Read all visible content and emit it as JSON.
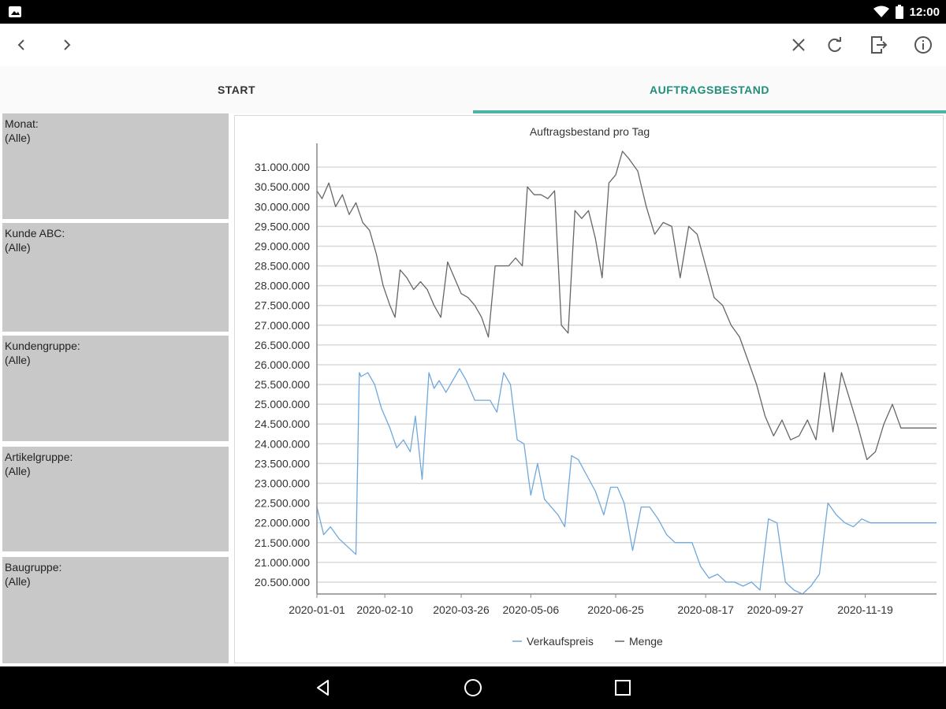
{
  "status_bar": {
    "time": "12:00",
    "icons": [
      "image-notification-icon",
      "wifi-icon",
      "battery-icon"
    ]
  },
  "app_bar": {
    "icons": [
      "back-chevron-icon",
      "forward-chevron-icon",
      "close-icon",
      "refresh-icon",
      "export-icon",
      "info-icon"
    ]
  },
  "tabs": [
    {
      "label": "START",
      "active": false
    },
    {
      "label": "AUFTRAGSBESTAND",
      "active": true
    }
  ],
  "colors": {
    "accent": "#1f8f7a",
    "indicator": "#4db3a2",
    "filter_bg": "#c8c8c8",
    "series_verkaufspreis": "#6fa8dc",
    "series_menge": "#666666"
  },
  "filters": [
    {
      "label": "Monat:",
      "value": "(Alle)"
    },
    {
      "label": "Kunde ABC:",
      "value": "(Alle)"
    },
    {
      "label": "Kundengruppe:",
      "value": "(Alle)"
    },
    {
      "label": "Artikelgruppe:",
      "value": "(Alle)"
    },
    {
      "label": "Baugruppe:",
      "value": "(Alle)"
    }
  ],
  "chart_data": {
    "type": "line",
    "title": "Auftragsbestand pro Tag",
    "xlabel": "",
    "ylabel": "",
    "grid": true,
    "legend_position": "bottom",
    "ylim": [
      20200000,
      31600000
    ],
    "y_ticks": [
      "20.500.000",
      "21.000.000",
      "21.500.000",
      "22.000.000",
      "22.500.000",
      "23.000.000",
      "23.500.000",
      "24.000.000",
      "24.500.000",
      "25.000.000",
      "25.500.000",
      "26.000.000",
      "26.500.000",
      "27.000.000",
      "27.500.000",
      "28.000.000",
      "28.500.000",
      "29.000.000",
      "29.500.000",
      "30.000.000",
      "30.500.000",
      "31.000.000"
    ],
    "x_range": [
      "2020-01-01",
      "2020-12-31"
    ],
    "x_ticks": [
      "2020-01-01",
      "2020-02-10",
      "2020-03-26",
      "2020-05-06",
      "2020-06-25",
      "2020-08-17",
      "2020-09-27",
      "2020-11-19"
    ],
    "series": [
      {
        "name": "Verkaufspreis",
        "color": "#6fa8dc",
        "x": [
          "2020-01-01",
          "2020-01-05",
          "2020-01-09",
          "2020-01-14",
          "2020-01-19",
          "2020-01-24",
          "2020-01-26",
          "2020-01-27",
          "2020-01-31",
          "2020-02-04",
          "2020-02-08",
          "2020-02-13",
          "2020-02-17",
          "2020-02-21",
          "2020-02-25",
          "2020-02-28",
          "2020-03-03",
          "2020-03-07",
          "2020-03-10",
          "2020-03-13",
          "2020-03-17",
          "2020-03-21",
          "2020-03-25",
          "2020-03-29",
          "2020-04-03",
          "2020-04-08",
          "2020-04-12",
          "2020-04-16",
          "2020-04-20",
          "2020-04-24",
          "2020-04-28",
          "2020-05-02",
          "2020-05-06",
          "2020-05-10",
          "2020-05-14",
          "2020-05-18",
          "2020-05-22",
          "2020-05-26",
          "2020-05-30",
          "2020-06-03",
          "2020-06-08",
          "2020-06-13",
          "2020-06-18",
          "2020-06-22",
          "2020-06-26",
          "2020-06-30",
          "2020-07-05",
          "2020-07-10",
          "2020-07-15",
          "2020-07-20",
          "2020-07-25",
          "2020-07-30",
          "2020-08-04",
          "2020-08-09",
          "2020-08-14",
          "2020-08-19",
          "2020-08-24",
          "2020-08-29",
          "2020-09-03",
          "2020-09-08",
          "2020-09-13",
          "2020-09-18",
          "2020-09-23",
          "2020-09-28",
          "2020-10-03",
          "2020-10-08",
          "2020-10-13",
          "2020-10-18",
          "2020-10-23",
          "2020-10-28",
          "2020-11-02",
          "2020-11-07",
          "2020-11-12",
          "2020-11-17",
          "2020-11-22",
          "2020-11-27",
          "2020-12-02",
          "2020-12-07",
          "2020-12-12",
          "2020-12-17",
          "2020-12-22",
          "2020-12-27",
          "2020-12-31"
        ],
        "values": [
          22400000,
          21700000,
          21900000,
          21600000,
          21400000,
          21200000,
          25800000,
          25700000,
          25800000,
          25500000,
          24900000,
          24400000,
          23900000,
          24100000,
          23800000,
          24700000,
          23100000,
          25800000,
          25400000,
          25600000,
          25300000,
          25600000,
          25900000,
          25600000,
          25100000,
          25100000,
          25100000,
          24800000,
          25800000,
          25500000,
          24100000,
          24000000,
          22700000,
          23500000,
          22600000,
          22400000,
          22200000,
          21900000,
          23700000,
          23600000,
          23200000,
          22800000,
          22200000,
          22900000,
          22900000,
          22500000,
          21300000,
          22400000,
          22400000,
          22100000,
          21700000,
          21500000,
          21500000,
          21500000,
          20900000,
          20600000,
          20700000,
          20500000,
          20500000,
          20400000,
          20500000,
          20300000,
          22100000,
          22000000,
          20500000,
          20300000,
          20200000,
          20400000,
          20700000,
          22500000,
          22200000,
          22000000,
          21900000,
          22100000,
          22000000,
          22000000,
          22000000,
          22000000,
          22000000,
          22000000,
          22000000,
          22000000,
          22000000
        ]
      },
      {
        "name": "Menge",
        "color": "#666666",
        "x": [
          "2020-01-01",
          "2020-01-04",
          "2020-01-08",
          "2020-01-12",
          "2020-01-16",
          "2020-01-20",
          "2020-01-24",
          "2020-01-28",
          "2020-02-01",
          "2020-02-05",
          "2020-02-09",
          "2020-02-13",
          "2020-02-16",
          "2020-02-19",
          "2020-02-23",
          "2020-02-27",
          "2020-03-02",
          "2020-03-06",
          "2020-03-10",
          "2020-03-14",
          "2020-03-18",
          "2020-03-22",
          "2020-03-26",
          "2020-03-30",
          "2020-04-03",
          "2020-04-07",
          "2020-04-11",
          "2020-04-15",
          "2020-04-19",
          "2020-04-23",
          "2020-04-27",
          "2020-05-01",
          "2020-05-04",
          "2020-05-08",
          "2020-05-12",
          "2020-05-16",
          "2020-05-20",
          "2020-05-24",
          "2020-05-28",
          "2020-06-01",
          "2020-06-05",
          "2020-06-09",
          "2020-06-13",
          "2020-06-17",
          "2020-06-21",
          "2020-06-25",
          "2020-06-29",
          "2020-07-03",
          "2020-07-08",
          "2020-07-13",
          "2020-07-18",
          "2020-07-23",
          "2020-07-28",
          "2020-08-02",
          "2020-08-07",
          "2020-08-12",
          "2020-08-17",
          "2020-08-22",
          "2020-08-27",
          "2020-09-01",
          "2020-09-06",
          "2020-09-11",
          "2020-09-16",
          "2020-09-21",
          "2020-09-26",
          "2020-10-01",
          "2020-10-06",
          "2020-10-11",
          "2020-10-16",
          "2020-10-21",
          "2020-10-26",
          "2020-10-31",
          "2020-11-05",
          "2020-11-10",
          "2020-11-15",
          "2020-11-20",
          "2020-11-25",
          "2020-11-30",
          "2020-12-05",
          "2020-12-10",
          "2020-12-15",
          "2020-12-20",
          "2020-12-25",
          "2020-12-31"
        ],
        "values": [
          30400000,
          30200000,
          30600000,
          30000000,
          30300000,
          29800000,
          30100000,
          29600000,
          29400000,
          28800000,
          28000000,
          27500000,
          27200000,
          28400000,
          28200000,
          27900000,
          28100000,
          27900000,
          27500000,
          27200000,
          28600000,
          28200000,
          27800000,
          27700000,
          27500000,
          27200000,
          26700000,
          28500000,
          28500000,
          28500000,
          28700000,
          28500000,
          30500000,
          30300000,
          30300000,
          30200000,
          30400000,
          27000000,
          26800000,
          29900000,
          29700000,
          29900000,
          29200000,
          28200000,
          30600000,
          30800000,
          31400000,
          31200000,
          30900000,
          30000000,
          29300000,
          29600000,
          29500000,
          28200000,
          29500000,
          29300000,
          28500000,
          27700000,
          27500000,
          27000000,
          26700000,
          26100000,
          25500000,
          24700000,
          24200000,
          24600000,
          24100000,
          24200000,
          24600000,
          24100000,
          25800000,
          24300000,
          25800000,
          25100000,
          24400000,
          23600000,
          23800000,
          24500000,
          25000000,
          24400000,
          24400000,
          24400000,
          24400000,
          24400000
        ]
      }
    ]
  }
}
